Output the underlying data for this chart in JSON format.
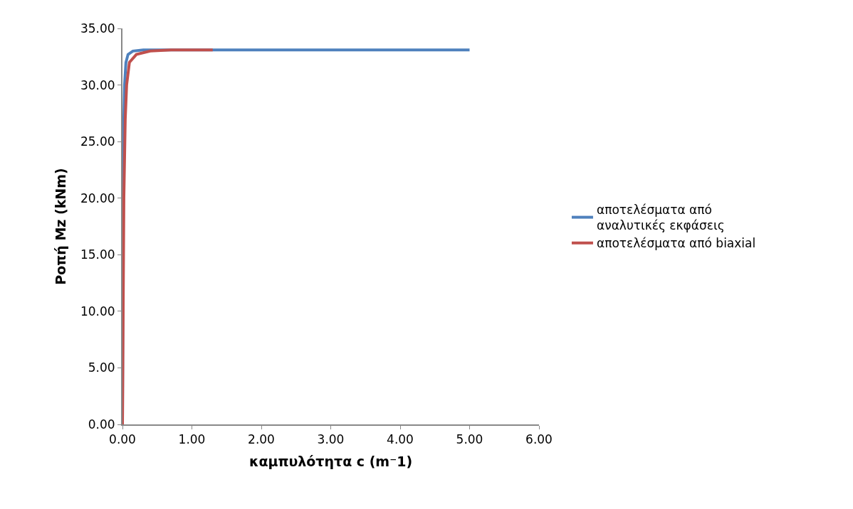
{
  "chart_data": {
    "type": "line",
    "xlabel": "καμπυλότητα c (m⁻1)",
    "ylabel": "Ροπή Mz (kNm)",
    "xlim": [
      0,
      6
    ],
    "xticks": [
      {
        "value": 0,
        "label": "0.00"
      },
      {
        "value": 1,
        "label": "1.00"
      },
      {
        "value": 2,
        "label": "2.00"
      },
      {
        "value": 3,
        "label": "3.00"
      },
      {
        "value": 4,
        "label": "4.00"
      },
      {
        "value": 5,
        "label": "5.00"
      },
      {
        "value": 6,
        "label": "6.00"
      }
    ],
    "ylim": [
      0,
      35
    ],
    "yticks": [
      {
        "value": 0,
        "label": "0.00"
      },
      {
        "value": 5,
        "label": "5.00"
      },
      {
        "value": 10,
        "label": "10.00"
      },
      {
        "value": 15,
        "label": "15.00"
      },
      {
        "value": 20,
        "label": "20.00"
      },
      {
        "value": 25,
        "label": "25.00"
      },
      {
        "value": 30,
        "label": "30.00"
      },
      {
        "value": 35,
        "label": "35.00"
      }
    ],
    "legend": "right",
    "marker": "none",
    "line_style": "solid",
    "series": [
      {
        "name": "αποτελέσματα από αναλυτικές εκφάσεις",
        "color": "#4f81bd",
        "x": [
          0,
          0.005,
          0.01,
          0.02,
          0.03,
          0.05,
          0.08,
          0.15,
          0.3,
          5
        ],
        "values": [
          0,
          10,
          20,
          27,
          30,
          32,
          32.7,
          33.0,
          33.1,
          33.1
        ]
      },
      {
        "name": "αποτελέσματα από biaxial",
        "color": "#c0504d",
        "x": [
          0,
          0.01,
          0.02,
          0.04,
          0.06,
          0.1,
          0.2,
          0.4,
          0.7,
          1.3
        ],
        "values": [
          0,
          10,
          20,
          27,
          30,
          32,
          32.7,
          33.0,
          33.1,
          33.1
        ]
      }
    ]
  }
}
